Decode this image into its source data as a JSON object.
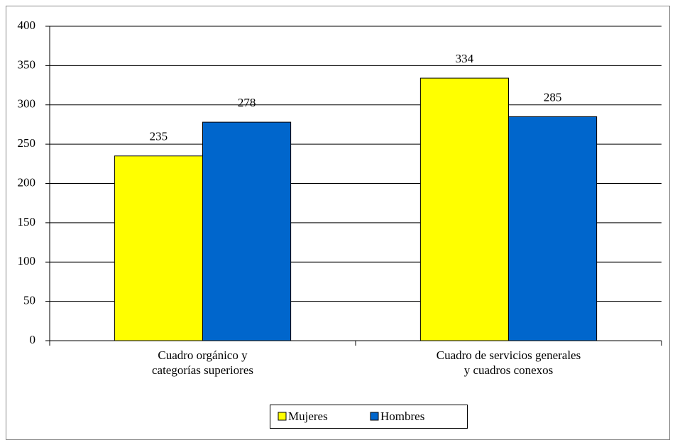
{
  "chart_data": {
    "type": "bar",
    "categories": [
      [
        "Cuadro orgánico y",
        "categorías superiores"
      ],
      [
        "Cuadro de servicios generales",
        "y cuadros conexos"
      ]
    ],
    "series": [
      {
        "name": "Mujeres",
        "color": "#ffff00",
        "values": [
          235,
          334
        ]
      },
      {
        "name": "Hombres",
        "color": "#0066cc",
        "values": [
          278,
          285
        ]
      }
    ],
    "ylim": [
      0,
      400
    ],
    "yticks": [
      0,
      50,
      100,
      150,
      200,
      250,
      300,
      350,
      400
    ],
    "grid": true,
    "legend": "bottom"
  }
}
